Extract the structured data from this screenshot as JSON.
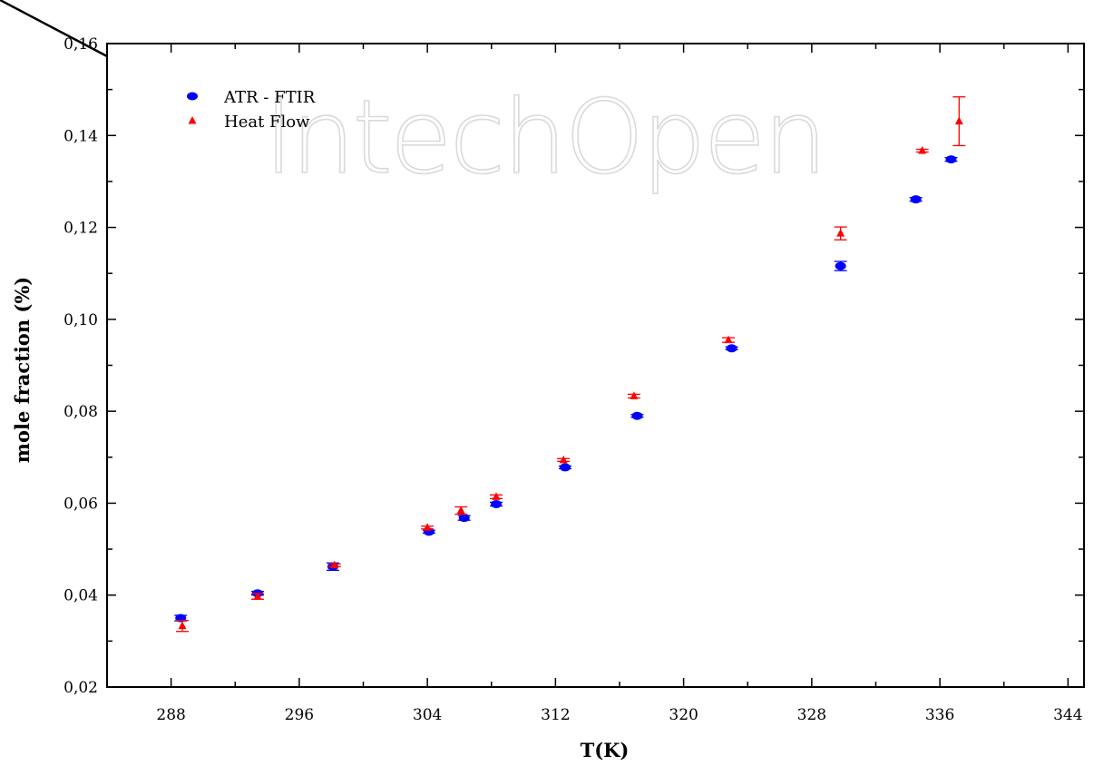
{
  "watermark": "IntechOpen",
  "chart_data": {
    "type": "scatter",
    "title": "",
    "xlabel": "T(K)",
    "ylabel": "mole fraction (%)",
    "xlim": [
      284,
      345
    ],
    "ylim": [
      0.02,
      0.16
    ],
    "x_ticks": [
      288,
      296,
      304,
      312,
      320,
      328,
      336,
      344
    ],
    "x_tick_labels": [
      "288",
      "296",
      "304",
      "312",
      "320",
      "328",
      "336",
      "344"
    ],
    "y_ticks": [
      0.02,
      0.04,
      0.06,
      0.08,
      0.1,
      0.12,
      0.14,
      0.16
    ],
    "y_tick_labels": [
      "0,02",
      "0,04",
      "0,06",
      "0,08",
      "0,10",
      "0,12",
      "0,14",
      "0,16"
    ],
    "grid": false,
    "legend_position": "top-left",
    "series": [
      {
        "name": "ATR - FTIR",
        "color": "#0000ff",
        "marker": "circle",
        "points": [
          {
            "x": 288.6,
            "y": 0.035,
            "err": 0.0006
          },
          {
            "x": 293.4,
            "y": 0.0404,
            "err": 0.0004
          },
          {
            "x": 298.1,
            "y": 0.0462,
            "err": 0.0008
          },
          {
            "x": 304.1,
            "y": 0.0538,
            "err": 0.0003
          },
          {
            "x": 306.3,
            "y": 0.0568,
            "err": 0.0005
          },
          {
            "x": 308.3,
            "y": 0.0598,
            "err": 0.0004
          },
          {
            "x": 312.6,
            "y": 0.0678,
            "err": 0.0003
          },
          {
            "x": 317.1,
            "y": 0.079,
            "err": 0.0003
          },
          {
            "x": 323.0,
            "y": 0.0937,
            "err": 0.0003
          },
          {
            "x": 329.8,
            "y": 0.1116,
            "err": 0.001
          },
          {
            "x": 334.5,
            "y": 0.1261,
            "err": 0.0004
          },
          {
            "x": 336.7,
            "y": 0.1348,
            "err": 0.0004
          }
        ]
      },
      {
        "name": "Heat Flow",
        "color": "#ff0000",
        "marker": "triangle",
        "points": [
          {
            "x": 288.7,
            "y": 0.0333,
            "err": 0.0012
          },
          {
            "x": 293.4,
            "y": 0.0397,
            "err": 0.0006
          },
          {
            "x": 298.2,
            "y": 0.0465,
            "err": 0.0003
          },
          {
            "x": 304.0,
            "y": 0.0547,
            "err": 0.0003
          },
          {
            "x": 306.1,
            "y": 0.0584,
            "err": 0.0008
          },
          {
            "x": 308.3,
            "y": 0.0614,
            "err": 0.0004
          },
          {
            "x": 312.5,
            "y": 0.0694,
            "err": 0.0003
          },
          {
            "x": 316.9,
            "y": 0.0833,
            "err": 0.0004
          },
          {
            "x": 322.8,
            "y": 0.0955,
            "err": 0.0005
          },
          {
            "x": 329.8,
            "y": 0.1187,
            "err": 0.0014
          },
          {
            "x": 334.9,
            "y": 0.1367,
            "err": 0.0003
          },
          {
            "x": 337.2,
            "y": 0.1431,
            "err": 0.0053
          }
        ]
      }
    ]
  }
}
